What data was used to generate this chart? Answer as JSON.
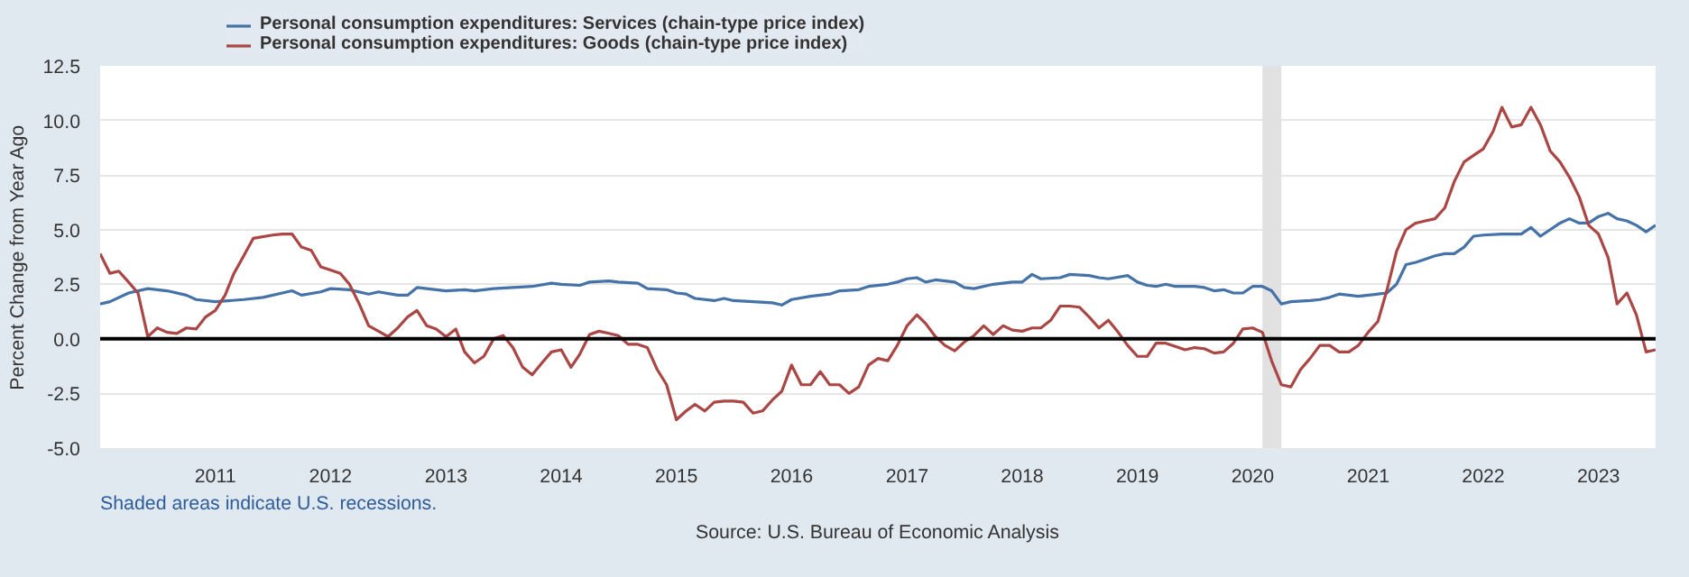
{
  "chart_data": {
    "type": "line",
    "ylabel": "Percent Change from Year Ago",
    "legend": "top left",
    "grid": "y",
    "xlim": [
      "2010-01",
      "2023-07"
    ],
    "xticks": [
      "2011",
      "2012",
      "2013",
      "2014",
      "2015",
      "2016",
      "2017",
      "2018",
      "2019",
      "2020",
      "2021",
      "2022",
      "2023"
    ],
    "ylim": [
      -5,
      12.5
    ],
    "yticks": [
      {
        "value": -5,
        "label": "-5.0"
      },
      {
        "value": -2.5,
        "label": "-2.5"
      },
      {
        "value": 0,
        "label": "0.0"
      },
      {
        "value": 2.5,
        "label": "2.5"
      },
      {
        "value": 5,
        "label": "5.0"
      },
      {
        "value": 7.5,
        "label": "7.5"
      },
      {
        "value": 10,
        "label": "10.0"
      },
      {
        "value": 12.5,
        "label": "12.5"
      }
    ],
    "ref_lines": [
      {
        "axis": "y",
        "value": 0,
        "color": "#000000"
      }
    ],
    "bands": [
      {
        "axis": "x",
        "from": "2020-02",
        "to": "2020-04",
        "color": "#e1e1e1"
      }
    ],
    "annotations": [
      "Shaded areas indicate U.S. recessions.",
      "Source: U.S. Bureau of Economic Analysis"
    ],
    "series": [
      {
        "name": "Personal consumption expenditures: Services (chain-type price index)",
        "color": "#4572a7",
        "x": [
          "2010-01",
          "2010-02",
          "2010-04",
          "2010-06",
          "2010-08",
          "2010-10",
          "2010-11",
          "2011-01",
          "2011-04",
          "2011-06",
          "2011-08",
          "2011-09",
          "2011-10",
          "2011-12",
          "2012-01",
          "2012-03",
          "2012-05",
          "2012-06",
          "2012-08",
          "2012-09",
          "2012-10",
          "2012-12",
          "2013-01",
          "2013-03",
          "2013-04",
          "2013-06",
          "2013-08",
          "2013-10",
          "2013-12",
          "2014-01",
          "2014-03",
          "2014-04",
          "2014-06",
          "2014-07",
          "2014-09",
          "2014-10",
          "2014-12",
          "2015-01",
          "2015-02",
          "2015-03",
          "2015-05",
          "2015-06",
          "2015-07",
          "2015-09",
          "2015-11",
          "2015-12",
          "2016-01",
          "2016-03",
          "2016-05",
          "2016-06",
          "2016-08",
          "2016-09",
          "2016-11",
          "2016-12",
          "2017-01",
          "2017-02",
          "2017-03",
          "2017-04",
          "2017-06",
          "2017-07",
          "2017-08",
          "2017-10",
          "2017-12",
          "2018-01",
          "2018-02",
          "2018-03",
          "2018-05",
          "2018-06",
          "2018-08",
          "2018-09",
          "2018-10",
          "2018-12",
          "2019-01",
          "2019-02",
          "2019-03",
          "2019-04",
          "2019-05",
          "2019-07",
          "2019-08",
          "2019-09",
          "2019-10",
          "2019-11",
          "2019-12",
          "2020-01",
          "2020-02",
          "2020-03",
          "2020-04",
          "2020-05",
          "2020-07",
          "2020-08",
          "2020-09",
          "2020-10",
          "2020-12",
          "2021-02",
          "2021-03",
          "2021-04",
          "2021-05",
          "2021-06",
          "2021-07",
          "2021-08",
          "2021-09",
          "2021-10",
          "2021-11",
          "2021-12",
          "2022-01",
          "2022-03",
          "2022-05",
          "2022-06",
          "2022-07",
          "2022-08",
          "2022-09",
          "2022-10",
          "2022-11",
          "2022-12",
          "2023-01",
          "2023-02",
          "2023-03",
          "2023-04",
          "2023-05",
          "2023-06",
          "2023-07"
        ],
        "values": [
          1.6,
          1.7,
          2.1,
          2.3,
          2.2,
          2.0,
          1.8,
          1.7,
          1.8,
          1.9,
          2.1,
          2.2,
          2.0,
          2.15,
          2.3,
          2.25,
          2.05,
          2.15,
          2.0,
          2.0,
          2.35,
          2.25,
          2.2,
          2.25,
          2.2,
          2.3,
          2.35,
          2.4,
          2.55,
          2.5,
          2.45,
          2.6,
          2.65,
          2.6,
          2.55,
          2.3,
          2.25,
          2.1,
          2.05,
          1.85,
          1.75,
          1.85,
          1.75,
          1.7,
          1.65,
          1.55,
          1.8,
          1.95,
          2.05,
          2.2,
          2.25,
          2.4,
          2.5,
          2.6,
          2.75,
          2.8,
          2.6,
          2.7,
          2.6,
          2.35,
          2.3,
          2.5,
          2.6,
          2.6,
          2.95,
          2.75,
          2.8,
          2.95,
          2.9,
          2.8,
          2.75,
          2.9,
          2.6,
          2.45,
          2.4,
          2.5,
          2.4,
          2.4,
          2.35,
          2.2,
          2.25,
          2.1,
          2.1,
          2.4,
          2.4,
          2.2,
          1.6,
          1.7,
          1.75,
          1.8,
          1.9,
          2.05,
          1.95,
          2.05,
          2.1,
          2.5,
          3.4,
          3.5,
          3.65,
          3.8,
          3.9,
          3.9,
          4.2,
          4.7,
          4.75,
          4.8,
          4.8,
          5.1,
          4.7,
          5.0,
          5.3,
          5.5,
          5.3,
          5.3,
          5.6,
          5.75,
          5.5,
          5.4,
          5.2,
          4.9,
          5.2
        ]
      },
      {
        "name": "Personal consumption expenditures: Goods (chain-type price index)",
        "color": "#aa4643",
        "x": [
          "2010-01",
          "2010-02",
          "2010-03",
          "2010-04",
          "2010-05",
          "2010-06",
          "2010-07",
          "2010-08",
          "2010-09",
          "2010-10",
          "2010-11",
          "2010-12",
          "2011-01",
          "2011-02",
          "2011-03",
          "2011-04",
          "2011-05",
          "2011-07",
          "2011-08",
          "2011-09",
          "2011-10",
          "2011-11",
          "2011-12",
          "2012-01",
          "2012-02",
          "2012-03",
          "2012-04",
          "2012-05",
          "2012-06",
          "2012-07",
          "2012-08",
          "2012-09",
          "2012-10",
          "2012-11",
          "2012-12",
          "2013-01",
          "2013-02",
          "2013-03",
          "2013-04",
          "2013-05",
          "2013-06",
          "2013-07",
          "2013-08",
          "2013-09",
          "2013-10",
          "2013-11",
          "2013-12",
          "2014-01",
          "2014-02",
          "2014-03",
          "2014-04",
          "2014-05",
          "2014-06",
          "2014-07",
          "2014-08",
          "2014-09",
          "2014-10",
          "2014-11",
          "2014-12",
          "2015-01",
          "2015-02",
          "2015-03",
          "2015-04",
          "2015-05",
          "2015-06",
          "2015-07",
          "2015-08",
          "2015-09",
          "2015-10",
          "2015-11",
          "2015-12",
          "2016-01",
          "2016-02",
          "2016-03",
          "2016-04",
          "2016-05",
          "2016-06",
          "2016-07",
          "2016-08",
          "2016-09",
          "2016-10",
          "2016-11",
          "2016-12",
          "2017-01",
          "2017-02",
          "2017-03",
          "2017-04",
          "2017-05",
          "2017-06",
          "2017-07",
          "2017-08",
          "2017-09",
          "2017-10",
          "2017-11",
          "2017-12",
          "2018-01",
          "2018-02",
          "2018-03",
          "2018-04",
          "2018-05",
          "2018-06",
          "2018-07",
          "2018-08",
          "2018-09",
          "2018-10",
          "2018-11",
          "2018-12",
          "2019-01",
          "2019-02",
          "2019-03",
          "2019-04",
          "2019-05",
          "2019-06",
          "2019-07",
          "2019-08",
          "2019-09",
          "2019-10",
          "2019-11",
          "2019-12",
          "2020-01",
          "2020-02",
          "2020-03",
          "2020-04",
          "2020-05",
          "2020-06",
          "2020-07",
          "2020-08",
          "2020-09",
          "2020-10",
          "2020-11",
          "2020-12",
          "2021-01",
          "2021-02",
          "2021-03",
          "2021-04",
          "2021-05",
          "2021-06",
          "2021-07",
          "2021-08",
          "2021-09",
          "2021-10",
          "2021-11",
          "2021-12",
          "2022-01",
          "2022-02",
          "2022-03",
          "2022-04",
          "2022-05",
          "2022-06",
          "2022-07",
          "2022-08",
          "2022-09",
          "2022-10",
          "2022-11",
          "2022-12",
          "2023-01",
          "2023-02",
          "2023-03",
          "2023-04",
          "2023-05",
          "2023-06",
          "2023-07"
        ],
        "values": [
          3.9,
          3.0,
          3.1,
          2.6,
          2.1,
          0.1,
          0.5,
          0.3,
          0.25,
          0.5,
          0.45,
          1.0,
          1.3,
          2.0,
          3.0,
          3.8,
          4.6,
          4.75,
          4.8,
          4.8,
          4.2,
          4.05,
          3.3,
          3.15,
          3.0,
          2.5,
          1.6,
          0.6,
          0.35,
          0.1,
          0.5,
          1.0,
          1.3,
          0.6,
          0.45,
          0.1,
          0.45,
          -0.6,
          -1.1,
          -0.8,
          0.0,
          0.15,
          -0.4,
          -1.3,
          -1.65,
          -1.1,
          -0.6,
          -0.5,
          -1.3,
          -0.7,
          0.2,
          0.35,
          0.25,
          0.15,
          -0.25,
          -0.25,
          -0.4,
          -1.4,
          -2.1,
          -3.7,
          -3.3,
          -3.0,
          -3.3,
          -2.9,
          -2.85,
          -2.85,
          -2.9,
          -3.4,
          -3.3,
          -2.8,
          -2.4,
          -1.2,
          -2.1,
          -2.1,
          -1.5,
          -2.1,
          -2.1,
          -2.5,
          -2.2,
          -1.2,
          -0.9,
          -1.0,
          -0.3,
          0.6,
          1.1,
          0.7,
          0.1,
          -0.3,
          -0.55,
          -0.15,
          0.15,
          0.6,
          0.2,
          0.6,
          0.4,
          0.35,
          0.5,
          0.5,
          0.85,
          1.5,
          1.5,
          1.45,
          1.0,
          0.5,
          0.85,
          0.3,
          -0.3,
          -0.8,
          -0.8,
          -0.2,
          -0.2,
          -0.35,
          -0.5,
          -0.4,
          -0.45,
          -0.65,
          -0.6,
          -0.2,
          0.45,
          0.5,
          0.3,
          -1.0,
          -2.1,
          -2.2,
          -1.4,
          -0.9,
          -0.3,
          -0.3,
          -0.6,
          -0.6,
          -0.3,
          0.3,
          0.8,
          2.2,
          4.0,
          5.0,
          5.3,
          5.4,
          5.5,
          6.0,
          7.2,
          8.1,
          8.4,
          8.7,
          9.5,
          10.6,
          9.7,
          9.8,
          10.6,
          9.8,
          8.6,
          8.1,
          7.4,
          6.5,
          5.2,
          4.8,
          3.7,
          1.6,
          2.1,
          1.1,
          -0.6,
          -0.5
        ]
      }
    ]
  }
}
